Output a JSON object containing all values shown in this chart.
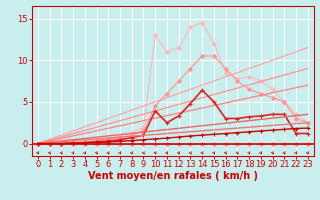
{
  "xlabel": "Vent moyen/en rafales ( km/h )",
  "background_color": "#c8eeee",
  "grid_color": "#ffffff",
  "font_color": "#cc0000",
  "x_ticks": [
    0,
    1,
    2,
    3,
    4,
    5,
    6,
    7,
    8,
    9,
    10,
    11,
    12,
    13,
    14,
    15,
    16,
    17,
    18,
    19,
    20,
    21,
    22,
    23
  ],
  "y_ticks": [
    0,
    5,
    10,
    15
  ],
  "ylim": [
    -1.5,
    16.5
  ],
  "xlim": [
    -0.5,
    23.5
  ],
  "lines": [
    {
      "x": [
        0,
        1,
        2,
        3,
        4,
        5,
        6,
        7,
        8,
        9,
        10,
        11,
        12,
        13,
        14,
        15,
        16,
        17,
        18,
        19,
        20,
        21,
        22,
        23
      ],
      "y": [
        0,
        0,
        0,
        0.1,
        0.2,
        0.4,
        0.6,
        0.9,
        1.3,
        1.9,
        13.0,
        11.0,
        11.5,
        14.0,
        14.5,
        12.0,
        8.5,
        7.8,
        8.0,
        7.5,
        6.5,
        5.0,
        3.5,
        2.5
      ],
      "color": "#ffbbbb",
      "linewidth": 0.9,
      "marker": "D",
      "markersize": 2.0,
      "linestyle": "-"
    },
    {
      "x": [
        0,
        1,
        2,
        3,
        4,
        5,
        6,
        7,
        8,
        9,
        10,
        11,
        12,
        13,
        14,
        15,
        16,
        17,
        18,
        19,
        20,
        21,
        22,
        23
      ],
      "y": [
        0,
        0,
        0,
        0.1,
        0.15,
        0.3,
        0.5,
        0.7,
        1.0,
        1.5,
        4.5,
        6.0,
        7.5,
        9.0,
        10.5,
        10.5,
        9.0,
        7.5,
        6.5,
        6.0,
        5.5,
        5.0,
        3.0,
        2.5
      ],
      "color": "#ff9999",
      "linewidth": 0.9,
      "marker": "D",
      "markersize": 2.0,
      "linestyle": "-"
    },
    {
      "x": [
        0,
        23
      ],
      "y": [
        0,
        11.5
      ],
      "color": "#ffaaaa",
      "linewidth": 1.0,
      "marker": null,
      "markersize": 0,
      "linestyle": "-"
    },
    {
      "x": [
        0,
        23
      ],
      "y": [
        0,
        9.0
      ],
      "color": "#ff9999",
      "linewidth": 1.0,
      "marker": null,
      "markersize": 0,
      "linestyle": "-"
    },
    {
      "x": [
        0,
        23
      ],
      "y": [
        0,
        7.0
      ],
      "color": "#ff8888",
      "linewidth": 1.0,
      "marker": null,
      "markersize": 0,
      "linestyle": "-"
    },
    {
      "x": [
        0,
        1,
        2,
        3,
        4,
        5,
        6,
        7,
        8,
        9,
        10,
        11,
        12,
        13,
        14,
        15,
        16,
        17,
        18,
        19,
        20,
        21,
        22,
        23
      ],
      "y": [
        0,
        0,
        0,
        0.05,
        0.1,
        0.2,
        0.3,
        0.45,
        0.7,
        1.0,
        3.9,
        2.5,
        3.3,
        4.8,
        6.4,
        5.0,
        3.0,
        3.0,
        3.2,
        3.3,
        3.5,
        3.5,
        1.2,
        1.2
      ],
      "color": "#dd2222",
      "linewidth": 1.2,
      "marker": "+",
      "markersize": 3.5,
      "linestyle": "-"
    },
    {
      "x": [
        0,
        23
      ],
      "y": [
        0,
        3.5
      ],
      "color": "#ee6666",
      "linewidth": 1.0,
      "marker": null,
      "markersize": 0,
      "linestyle": "-"
    },
    {
      "x": [
        0,
        23
      ],
      "y": [
        0,
        2.5
      ],
      "color": "#ee7777",
      "linewidth": 1.0,
      "marker": null,
      "markersize": 0,
      "linestyle": "-"
    },
    {
      "x": [
        0,
        1,
        2,
        3,
        4,
        5,
        6,
        7,
        8,
        9,
        10,
        11,
        12,
        13,
        14,
        15,
        16,
        17,
        18,
        19,
        20,
        21,
        22,
        23
      ],
      "y": [
        0,
        0,
        0,
        0,
        0,
        0,
        0,
        0,
        0,
        0,
        0,
        0,
        0,
        0,
        0,
        0,
        0,
        0,
        0,
        0,
        0,
        0,
        0,
        0
      ],
      "color": "#ff8888",
      "linewidth": 0.8,
      "marker": "D",
      "markersize": 2.0,
      "linestyle": "--"
    },
    {
      "x": [
        0,
        1,
        2,
        3,
        4,
        5,
        6,
        7,
        8,
        9,
        10,
        11,
        12,
        13,
        14,
        15,
        16,
        17,
        18,
        19,
        20,
        21,
        22,
        23
      ],
      "y": [
        0,
        0,
        0,
        0.05,
        0.08,
        0.13,
        0.18,
        0.25,
        0.35,
        0.45,
        0.55,
        0.65,
        0.78,
        0.9,
        1.0,
        1.1,
        1.2,
        1.3,
        1.4,
        1.5,
        1.6,
        1.7,
        1.8,
        1.85
      ],
      "color": "#cc0000",
      "linewidth": 1.0,
      "marker": "+",
      "markersize": 2.5,
      "linestyle": "-"
    }
  ],
  "xlabel_fontsize": 7.0,
  "tick_fontsize": 6.0
}
